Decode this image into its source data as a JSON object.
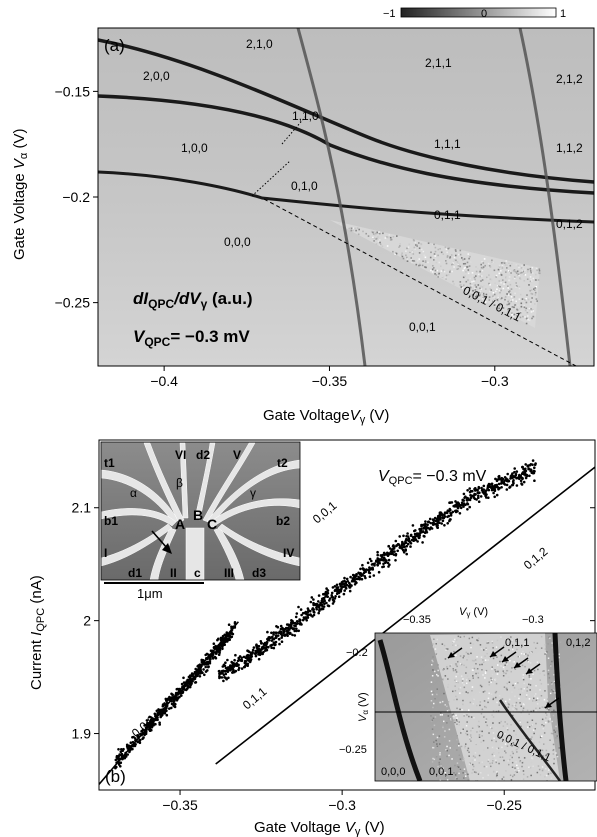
{
  "panel_a": {
    "panel_label": "(a)",
    "colorbar_ticks": [
      "−1",
      "0",
      "1"
    ],
    "ylabel_prefix": "Gate Voltage ",
    "ylabel_var": "V",
    "ylabel_sub": "α",
    "ylabel_unit": " (V)",
    "xlabel_prefix": "Gate Voltage",
    "xlabel_var": "V",
    "xlabel_sub": "γ",
    "xlabel_unit": " (V)",
    "annotation_line1": "dI",
    "annotation_line1_sub": "QPC",
    "annotation_line1_rest": "/dV",
    "annotation_line1_sub2": "γ",
    "annotation_line1_tail": " (a.u.)",
    "annotation_line2_var": "V",
    "annotation_line2_sub": "QPC",
    "annotation_line2_rest": "= −0.3 mV",
    "region_labels": [
      {
        "text": "2,1,0"
      },
      {
        "text": "2,0,0"
      },
      {
        "text": "2,1,1"
      },
      {
        "text": "2,1,2"
      },
      {
        "text": "1,1,0"
      },
      {
        "text": "1,0,0"
      },
      {
        "text": "1,1,1"
      },
      {
        "text": "1,1,2"
      },
      {
        "text": "0,1,0"
      },
      {
        "text": "0,1,1"
      },
      {
        "text": "0,1,2"
      },
      {
        "text": "0,0,0"
      },
      {
        "text": "0,0,1 / 0,1,1"
      },
      {
        "text": "0,0,1"
      }
    ]
  },
  "panel_b": {
    "panel_label": "(b)",
    "ylabel_prefix": "Current ",
    "ylabel_var": "I",
    "ylabel_sub": "QPC",
    "ylabel_unit": " (nA)",
    "xlabel_prefix": "Gate Voltage ",
    "xlabel_var": "V",
    "xlabel_sub": "γ",
    "xlabel_unit": " (V)",
    "vqpc_var": "V",
    "vqpc_sub": "QPC",
    "vqpc_rest": "= −0.3 mV",
    "line_labels": [
      "0,0,0",
      "0,0,1",
      "0,1,1",
      "0,1,2"
    ],
    "sem_inset": {
      "labels": [
        "t1",
        "VI",
        "d2",
        "V",
        "t2",
        "β",
        "α",
        "γ",
        "b1",
        "A",
        "B",
        "C",
        "b2",
        "I",
        "II",
        "c",
        "III",
        "IV",
        "d1",
        "d3"
      ],
      "scalebar": "1μm"
    },
    "map_inset": {
      "top_ticks": [
        "−0.35",
        "−0.3"
      ],
      "top_label_var": "V",
      "top_label_sub": "γ",
      "top_label_unit": " (V)",
      "left_ticks": [
        "−0.2",
        "−0.25"
      ],
      "left_label_var": "V",
      "left_label_sub": "α",
      "left_label_unit": " (V)",
      "region_labels": [
        "0,1,1",
        "0,1,2",
        "0,0,0",
        "0,0,1",
        "0,0,1 / 0,1,1"
      ]
    }
  },
  "chart_data": [
    {
      "type": "heatmap",
      "title": "",
      "xlabel": "Gate Voltage Vγ (V)",
      "ylabel": "Gate Voltage Vα (V)",
      "xlim": [
        -0.42,
        -0.27
      ],
      "ylim": [
        -0.28,
        -0.12
      ],
      "x_ticks": [
        "−0.4",
        "−0.35",
        "−0.3"
      ],
      "y_ticks": [
        "−0.15",
        "−0.2",
        "−0.25"
      ],
      "colorbar": {
        "min": -1,
        "max": 1,
        "ticks": [
          -1,
          0,
          1
        ]
      },
      "colormap": [
        "#222222",
        "#ffffff"
      ]
    },
    {
      "type": "scatter",
      "title": "",
      "xlabel": "Gate Voltage Vγ (V)",
      "ylabel": "Current IQPC (nA)",
      "xlim": [
        -0.375,
        -0.222
      ],
      "ylim": [
        1.85,
        2.16
      ],
      "x_ticks": [
        "−0.35",
        "−0.3",
        "−0.25"
      ],
      "y_ticks": [
        "1.9",
        "2",
        "2.1"
      ],
      "fit_lines": [
        {
          "x": [
            -0.375,
            -0.332
          ],
          "y": [
            1.855,
            1.999
          ]
        },
        {
          "x": [
            -0.339,
            -0.222
          ],
          "y": [
            1.873,
            2.136
          ]
        }
      ],
      "series": [
        {
          "values": [
            [
              -0.37,
              1.874
            ],
            [
              -0.362,
              1.899
            ],
            [
              -0.355,
              1.921
            ],
            [
              -0.347,
              1.946
            ],
            [
              -0.34,
              1.97
            ],
            [
              -0.333,
              1.994
            ]
          ]
        },
        {
          "values": [
            [
              -0.338,
              1.95
            ],
            [
              -0.32,
              1.985
            ],
            [
              -0.3,
              2.03
            ],
            [
              -0.28,
              2.07
            ],
            [
              -0.26,
              2.11
            ],
            [
              -0.24,
              2.135
            ]
          ]
        }
      ]
    }
  ]
}
